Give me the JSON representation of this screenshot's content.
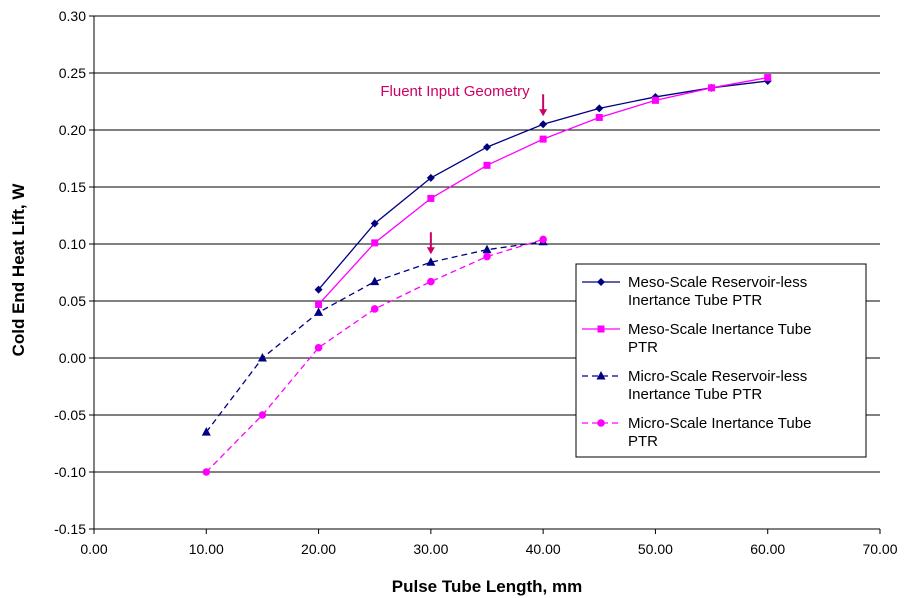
{
  "chart_data": {
    "type": "line",
    "title": "",
    "xlabel": "Pulse Tube Length, mm",
    "ylabel": "Cold End Heat Lift, W",
    "xlim": [
      0,
      70
    ],
    "ylim": [
      -0.15,
      0.3
    ],
    "x_ticks": [
      "0.00",
      "10.00",
      "20.00",
      "30.00",
      "40.00",
      "50.00",
      "60.00",
      "70.00"
    ],
    "y_ticks": [
      "-0.15",
      "-0.10",
      "-0.05",
      "0.00",
      "0.05",
      "0.10",
      "0.15",
      "0.20",
      "0.25",
      "0.30"
    ],
    "grid": "horizontal",
    "legend_position": "right",
    "series": [
      {
        "name_lines": [
          "Meso-Scale Reservoir-less",
          "Inertance Tube PTR"
        ],
        "color": "#000080",
        "marker": "diamond",
        "dash": "solid",
        "x": [
          20,
          25,
          30,
          35,
          40,
          45,
          50,
          55,
          60
        ],
        "y": [
          0.06,
          0.118,
          0.158,
          0.185,
          0.205,
          0.219,
          0.229,
          0.237,
          0.243
        ]
      },
      {
        "name_lines": [
          "Meso-Scale Inertance Tube",
          "PTR"
        ],
        "color": "#ff00ff",
        "marker": "square",
        "dash": "solid",
        "x": [
          20,
          25,
          30,
          35,
          40,
          45,
          50,
          55,
          60
        ],
        "y": [
          0.047,
          0.101,
          0.14,
          0.169,
          0.192,
          0.211,
          0.226,
          0.237,
          0.246
        ]
      },
      {
        "name_lines": [
          "Micro-Scale Reservoir-less",
          "Inertance Tube PTR"
        ],
        "color": "#000080",
        "marker": "triangle",
        "dash": "dashed",
        "x": [
          10,
          15,
          20,
          25,
          30,
          35,
          40
        ],
        "y": [
          -0.065,
          0.0,
          0.04,
          0.067,
          0.084,
          0.095,
          0.102
        ]
      },
      {
        "name_lines": [
          "Micro-Scale Inertance Tube",
          "PTR"
        ],
        "color": "#ff00ff",
        "marker": "circle",
        "dash": "dashed",
        "x": [
          10,
          15,
          20,
          25,
          30,
          35,
          40
        ],
        "y": [
          -0.1,
          -0.05,
          0.009,
          0.043,
          0.067,
          0.089,
          0.104
        ]
      }
    ],
    "annotations": [
      {
        "text": "Fluent Input Geometry",
        "color": "#cc0066",
        "arrow_at": {
          "x": 40,
          "y": 0.205
        }
      },
      {
        "text": "",
        "color": "#cc0066",
        "arrow_at": {
          "x": 30,
          "y": 0.084
        }
      }
    ]
  }
}
